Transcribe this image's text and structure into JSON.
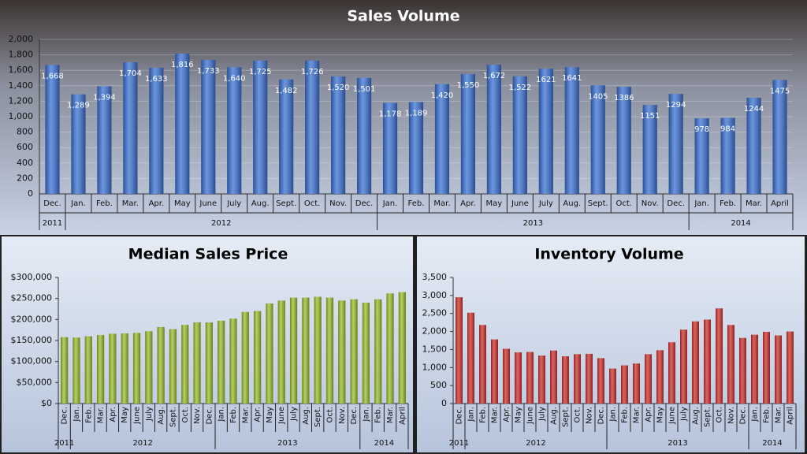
{
  "chart_data": [
    {
      "type": "bar",
      "title": "Sales Volume",
      "categories": [
        "Dec.",
        "Jan.",
        "Feb.",
        "Mar.",
        "Apr.",
        "May",
        "June",
        "July",
        "Aug.",
        "Sept.",
        "Oct.",
        "Nov.",
        "Dec.",
        "Jan.",
        "Feb.",
        "Mar.",
        "Apr.",
        "May",
        "June",
        "July",
        "Aug.",
        "Sept.",
        "Oct.",
        "Nov.",
        "Dec.",
        "Jan.",
        "Feb.",
        "Mar.",
        "April"
      ],
      "category_groups": [
        "2011",
        "2012",
        "2012",
        "2012",
        "2012",
        "2012",
        "2012",
        "2012",
        "2012",
        "2012",
        "2012",
        "2012",
        "2012",
        "2013",
        "2013",
        "2013",
        "2013",
        "2013",
        "2013",
        "2013",
        "2013",
        "2013",
        "2013",
        "2013",
        "2013",
        "2014",
        "2014",
        "2014",
        "2014"
      ],
      "values": [
        1668,
        1289,
        1394,
        1704,
        1633,
        1816,
        1733,
        1640,
        1725,
        1482,
        1726,
        1520,
        1501,
        1178,
        1189,
        1420,
        1550,
        1672,
        1522,
        1621,
        1641,
        1405,
        1386,
        1151,
        1294,
        978,
        984,
        1244,
        1475
      ],
      "value_labels": [
        "1,668",
        "1,289",
        "1,394",
        "1,704",
        "1,633",
        "1,816",
        "1,733",
        "1,640",
        "1,725",
        "1,482",
        "1,726",
        "1,520",
        "1,501",
        "1,178",
        "1,189",
        "1,420",
        "1,550",
        "1,672",
        "1,522",
        "1621",
        "1641",
        "1405",
        "1386",
        "1151",
        "1294",
        "978",
        "984",
        "1244",
        "1475"
      ],
      "color": "#3b72d6",
      "ylim": [
        0,
        2000
      ],
      "yticks": [
        0,
        200,
        400,
        600,
        800,
        {
          "value": 1000,
          "label": "1,000"
        },
        {
          "value": 1200,
          "label": "1,200"
        },
        {
          "value": 1400,
          "label": "1,400"
        },
        {
          "value": 1600,
          "label": "1,600"
        },
        {
          "value": 1800,
          "label": "1,800"
        },
        {
          "value": 2000,
          "label": "2,000"
        }
      ],
      "grid": true
    },
    {
      "type": "bar",
      "title": "Median Sales Price",
      "categories": [
        "Dec.",
        "Jan.",
        "Feb.",
        "Mar.",
        "Apr.",
        "May",
        "June",
        "July",
        "Aug.",
        "Sept.",
        "Oct.",
        "Nov.",
        "Dec.",
        "Jan.",
        "Feb.",
        "Mar.",
        "Apr.",
        "May",
        "June",
        "July",
        "Aug.",
        "Sept.",
        "Oct.",
        "Nov.",
        "Dec.",
        "Jan.",
        "Feb.",
        "Mar.",
        "April"
      ],
      "category_groups": [
        "2011",
        "2012",
        "2012",
        "2012",
        "2012",
        "2012",
        "2012",
        "2012",
        "2012",
        "2012",
        "2012",
        "2012",
        "2012",
        "2013",
        "2013",
        "2013",
        "2013",
        "2013",
        "2013",
        "2013",
        "2013",
        "2013",
        "2013",
        "2013",
        "2013",
        "2014",
        "2014",
        "2014",
        "2014"
      ],
      "values": [
        158000,
        157000,
        160000,
        163000,
        166000,
        167000,
        168000,
        172000,
        182000,
        177000,
        187000,
        193000,
        193000,
        197000,
        202000,
        218000,
        220000,
        238000,
        245000,
        252000,
        252000,
        254000,
        252000,
        245000,
        248000,
        240000,
        248000,
        262000,
        265000
      ],
      "color": "#9cbf2b",
      "ylim": [
        0,
        300000
      ],
      "yticks": [
        {
          "value": 0,
          "label": "$0"
        },
        {
          "value": 50000,
          "label": "$50,000"
        },
        {
          "value": 100000,
          "label": "$100,000"
        },
        {
          "value": 150000,
          "label": "$150,000"
        },
        {
          "value": 200000,
          "label": "$200,000"
        },
        {
          "value": 250000,
          "label": "$250,000"
        },
        {
          "value": 300000,
          "label": "$300,000"
        }
      ],
      "grid": false
    },
    {
      "type": "bar",
      "title": "Inventory Volume",
      "categories": [
        "Dec.",
        "Jan.",
        "Feb.",
        "Mar.",
        "Apr.",
        "May",
        "June",
        "July",
        "Aug.",
        "Sept.",
        "Oct.",
        "Nov.",
        "Dec.",
        "Jan.",
        "Feb.",
        "Mar.",
        "Apr.",
        "May",
        "June",
        "July",
        "Aug.",
        "Sept.",
        "Oct.",
        "Nov.",
        "Dec.",
        "Jan.",
        "Feb.",
        "Mar.",
        "April"
      ],
      "category_groups": [
        "2011",
        "2012",
        "2012",
        "2012",
        "2012",
        "2012",
        "2012",
        "2012",
        "2012",
        "2012",
        "2012",
        "2012",
        "2012",
        "2013",
        "2013",
        "2013",
        "2013",
        "2013",
        "2013",
        "2013",
        "2013",
        "2013",
        "2013",
        "2013",
        "2013",
        "2014",
        "2014",
        "2014",
        "2014"
      ],
      "values": [
        2950,
        2520,
        2180,
        1780,
        1520,
        1420,
        1430,
        1330,
        1470,
        1310,
        1370,
        1380,
        1260,
        970,
        1060,
        1110,
        1370,
        1480,
        1700,
        2050,
        2280,
        2330,
        2640,
        2180,
        1820,
        1910,
        1990,
        1890,
        2000
      ],
      "color": "#d0302a",
      "ylim": [
        0,
        3500
      ],
      "yticks": [
        0,
        500,
        {
          "value": 1000,
          "label": "1,000"
        },
        {
          "value": 1500,
          "label": "1,500"
        },
        {
          "value": 2000,
          "label": "2,000"
        },
        {
          "value": 2500,
          "label": "2,500"
        },
        {
          "value": 3000,
          "label": "3,000"
        },
        {
          "value": 3500,
          "label": "3,500"
        }
      ],
      "grid": false
    }
  ]
}
